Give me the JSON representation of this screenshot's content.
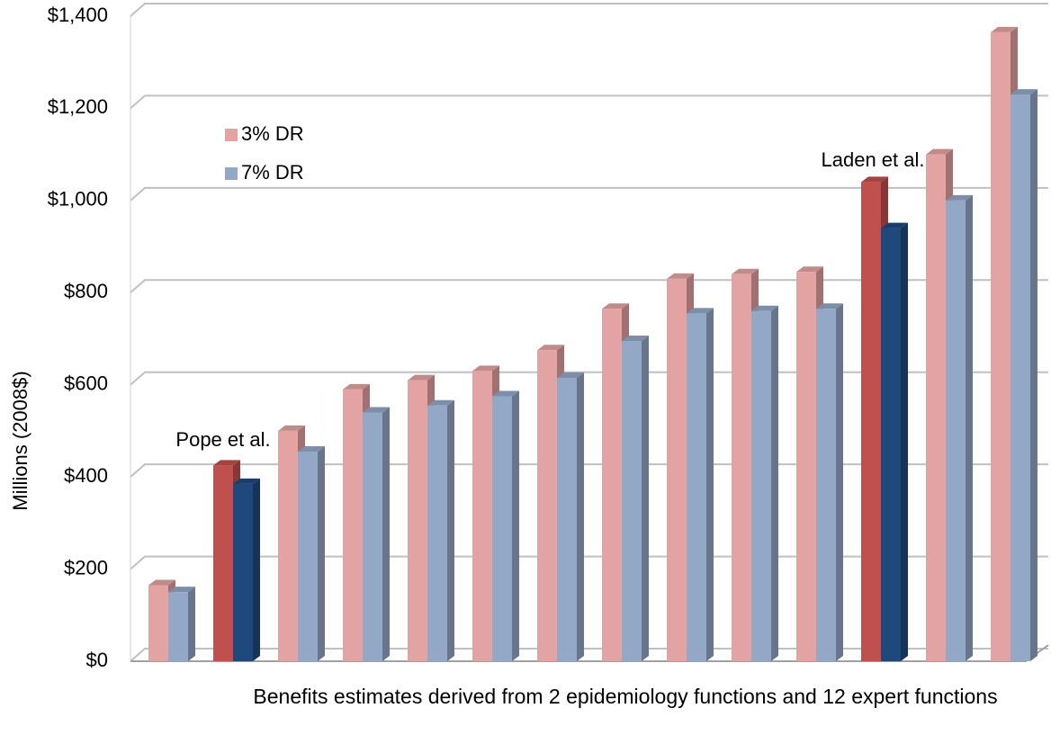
{
  "chart_data": {
    "type": "bar3d",
    "ylabel": "Millions (2008$)",
    "xlabel": "Benefits estimates derived from 2 epidemiology functions and 12 expert functions",
    "annotations": [
      "Pope et al.",
      "Laden et al."
    ],
    "categories": [
      null,
      null,
      null,
      null,
      null,
      null,
      null,
      null,
      null,
      null,
      null,
      null,
      null,
      null
    ],
    "series": [
      {
        "name": "3% DR",
        "color": "#e3a3a2",
        "colors": [
          "#e3a3a2",
          "#c0504d",
          "#e3a3a2",
          "#e3a3a2",
          "#e3a3a2",
          "#e3a3a2",
          "#e3a3a2",
          "#e3a3a2",
          "#e3a3a2",
          "#e3a3a2",
          "#e3a3a2",
          "#c0504d",
          "#e3a3a2",
          "#e3a3a2"
        ],
        "values": [
          165,
          425,
          500,
          590,
          610,
          630,
          675,
          765,
          830,
          840,
          845,
          1040,
          1100,
          1365
        ]
      },
      {
        "name": "7% DR",
        "color": "#93a8c6",
        "colors": [
          "#93a8c6",
          "#1f497d",
          "#93a8c6",
          "#93a8c6",
          "#93a8c6",
          "#93a8c6",
          "#93a8c6",
          "#93a8c6",
          "#93a8c6",
          "#93a8c6",
          "#93a8c6",
          "#1f497d",
          "#93a8c6",
          "#93a8c6"
        ],
        "values": [
          150,
          385,
          455,
          540,
          555,
          575,
          615,
          695,
          755,
          760,
          765,
          940,
          1000,
          1230
        ]
      }
    ],
    "ylim": [
      0,
      1400
    ],
    "yticks": [
      {
        "value": 0,
        "label": "$0"
      },
      {
        "value": 200,
        "label": "$200"
      },
      {
        "value": 400,
        "label": "$400"
      },
      {
        "value": 600,
        "label": "$600"
      },
      {
        "value": 800,
        "label": "$800"
      },
      {
        "value": 1000,
        "label": "$1,000"
      },
      {
        "value": 1200,
        "label": "$1,200"
      },
      {
        "value": 1400,
        "label": "$1,400"
      }
    ],
    "grid": true,
    "legend": "upper left"
  }
}
